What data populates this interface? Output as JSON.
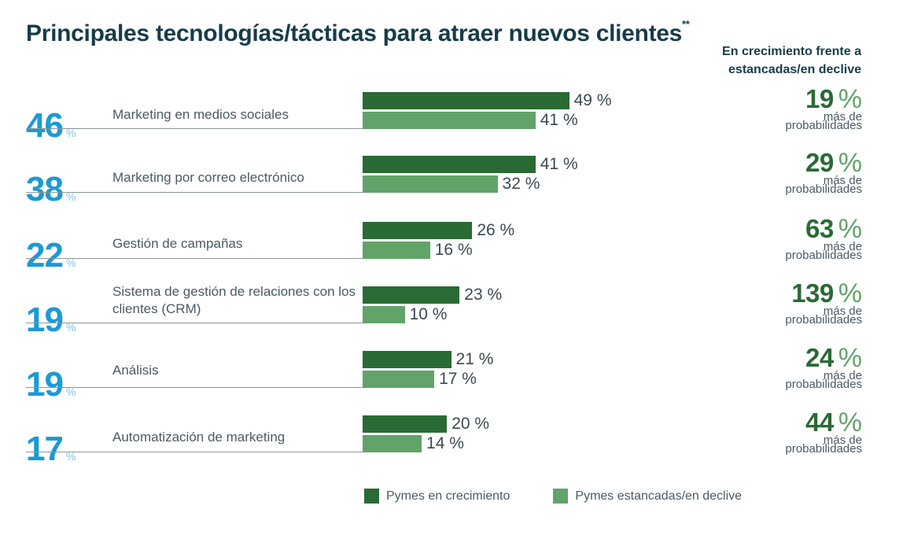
{
  "title": "Principales tecnologías/tácticas para atraer nuevos clientes",
  "title_mark": "**",
  "side_title": "En crecimiento frente a estancadas/en declive",
  "percent_sign": "%",
  "colors": {
    "growth": "#2a6a35",
    "stagnant": "#62a36a",
    "accent": "#1b9ad6",
    "text": "#163c4a"
  },
  "legend": [
    {
      "label": "Pymes en crecimiento",
      "color": "#2a6a35"
    },
    {
      "label": "Pymes estancadas/en declive",
      "color": "#62a36a"
    }
  ],
  "chart_data": {
    "type": "bar",
    "orientation": "horizontal",
    "title": "Principales tecnologías/tácticas para atraer nuevos clientes",
    "categories": [
      "Marketing en medios sociales",
      "Marketing por correo electrónico",
      "Gestión de campañas",
      "Sistema de gestión de relaciones con los clientes (CRM)",
      "Análisis",
      "Automatización de marketing"
    ],
    "overall_percent": [
      46,
      38,
      22,
      19,
      19,
      17
    ],
    "series": [
      {
        "name": "Pymes en crecimiento",
        "values": [
          49,
          41,
          26,
          23,
          21,
          20
        ],
        "labels": [
          "49 %",
          "41 %",
          "26 %",
          "23 %",
          "21 %",
          "20 %"
        ]
      },
      {
        "name": "Pymes estancadas/en declive",
        "values": [
          41,
          32,
          16,
          10,
          17,
          14
        ],
        "labels": [
          "41 %",
          "32 %",
          "16 %",
          "10 %",
          "17 %",
          "14 %"
        ]
      }
    ],
    "more_likely_percent": [
      19,
      29,
      63,
      139,
      24,
      44
    ],
    "more_likely_text": [
      "más de",
      "probabilidades"
    ],
    "xlim": [
      0,
      100
    ],
    "legend_position": "bottom"
  }
}
